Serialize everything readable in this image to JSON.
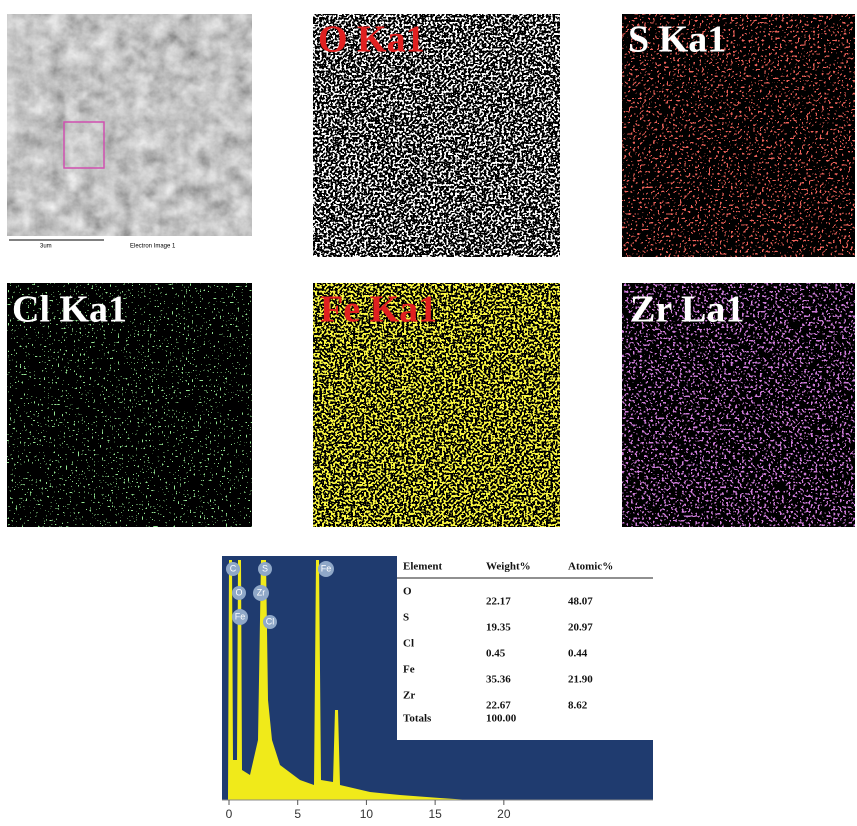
{
  "sem": {
    "scale": "3um",
    "caption": "Electron Image 1"
  },
  "maps": [
    {
      "label": "O Ka1"
    },
    {
      "label": "S Ka1"
    },
    {
      "label": "Cl Ka1"
    },
    {
      "label": "Fe Ka1"
    },
    {
      "label": "Zr La1"
    }
  ],
  "spectrum": {
    "peak_labels": [
      "C",
      "S",
      "Fe",
      "O",
      "Zr",
      "Fe",
      "Cl"
    ],
    "xlim": [
      0,
      31
    ],
    "xticks": [
      0,
      5,
      10,
      15,
      20
    ],
    "table": {
      "header": [
        "Element",
        "Weight%",
        "Atomic%"
      ],
      "rows": [
        [
          "O",
          "22.17",
          "48.07"
        ],
        [
          "S",
          "19.35",
          "20.97"
        ],
        [
          "Cl",
          "0.45",
          "0.44"
        ],
        [
          "Fe",
          "35.36",
          "21.90"
        ],
        [
          "Zr",
          "22.67",
          "8.62"
        ],
        [
          "Totals",
          "100.00",
          ""
        ]
      ]
    }
  }
}
